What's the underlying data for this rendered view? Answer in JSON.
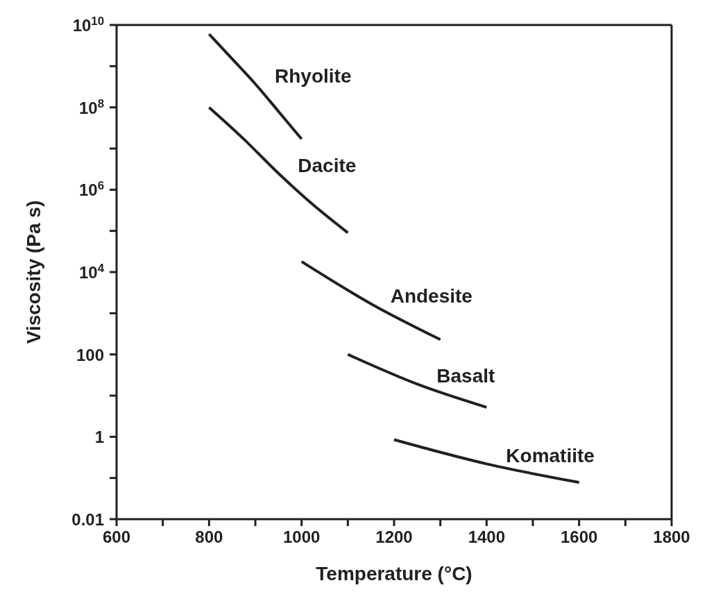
{
  "chart_data": {
    "type": "line",
    "xlabel": "Temperature (°C)",
    "ylabel": "Viscosity (Pa s)",
    "log": "y",
    "marker": "none",
    "line_style": "solid",
    "xlim": [
      600,
      1800
    ],
    "xticks": [
      600,
      {
        "value": 700,
        "label": null
      },
      800,
      {
        "value": 900,
        "label": null
      },
      1000,
      {
        "value": 1100,
        "label": null
      },
      1200,
      {
        "value": 1300,
        "label": null
      },
      1400,
      {
        "value": 1500,
        "label": null
      },
      1600,
      {
        "value": 1700,
        "label": null
      },
      1800
    ],
    "ylim": [
      0.01,
      10000000000
    ],
    "yticks": [
      0.01,
      {
        "value": 0.1,
        "label": null
      },
      1,
      {
        "value": 10,
        "label": null
      },
      100,
      {
        "value": 1000,
        "label": null
      },
      {
        "value": 10000,
        "label": "10$^{4}$"
      },
      {
        "value": 100000,
        "label": null
      },
      {
        "value": 1000000,
        "label": "10$^{6}$"
      },
      {
        "value": 10000000,
        "label": null
      },
      {
        "value": 100000000,
        "label": "10$^{8}$"
      },
      {
        "value": 1000000000,
        "label": null
      },
      {
        "value": 10000000000,
        "label": "10$^{10}$"
      }
    ],
    "series": [
      {
        "name": "Rhyolite",
        "color": "#231f20",
        "x": [
          800,
          850,
          900,
          950,
          1000
        ],
        "values": [
          6000000000,
          1500000000,
          370000000,
          80000000,
          17000000
        ]
      },
      {
        "name": "Dacite",
        "color": "#231f20",
        "x": [
          800,
          875,
          950,
          1025,
          1100
        ],
        "values": [
          100000000,
          17000000,
          2500000,
          430000,
          90000
        ]
      },
      {
        "name": "Andesite",
        "color": "#231f20",
        "x": [
          1000,
          1150,
          1300
        ],
        "values": [
          18000,
          1700,
          230
        ]
      },
      {
        "name": "Basalt",
        "color": "#231f20",
        "x": [
          1100,
          1250,
          1400
        ],
        "values": [
          100,
          19,
          5.2
        ]
      },
      {
        "name": "Komatiite",
        "color": "#231f20",
        "x": [
          1200,
          1400,
          1600
        ],
        "values": [
          0.85,
          0.22,
          0.078
        ]
      }
    ]
  }
}
